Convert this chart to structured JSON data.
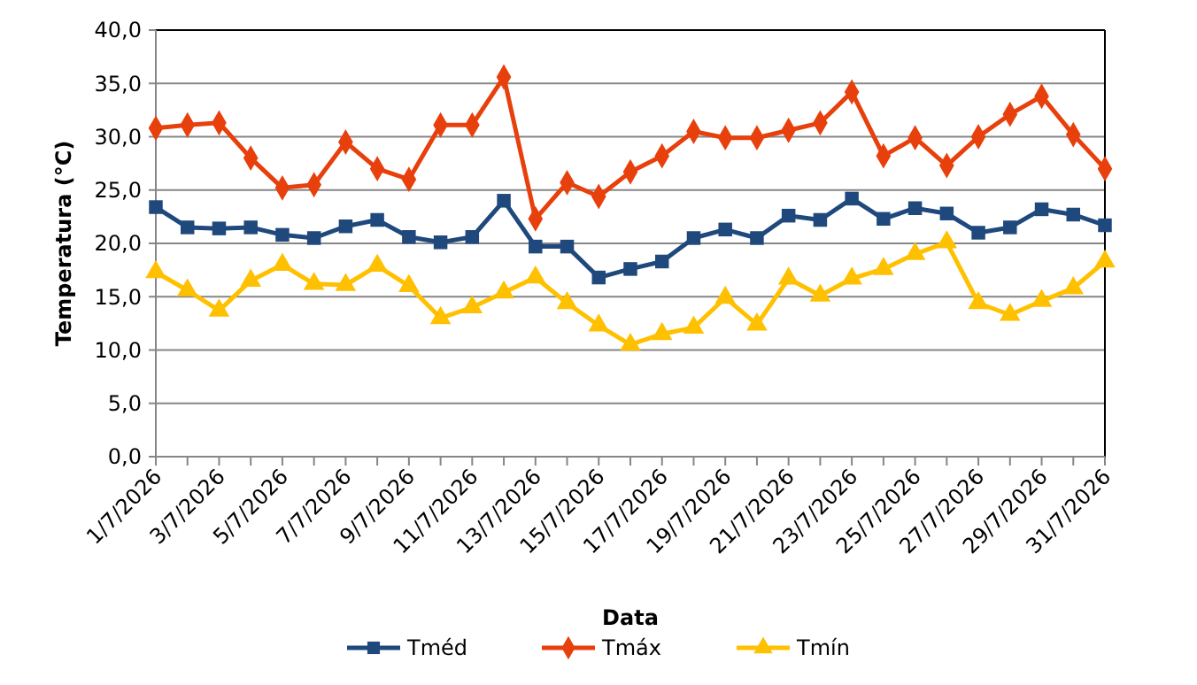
{
  "chart_data": {
    "type": "line",
    "xlabel": "Data",
    "ylabel": "Temperatura (°C)",
    "categories": [
      "1/7/2026",
      null,
      "3/7/2026",
      null,
      "5/7/2026",
      null,
      "7/7/2026",
      null,
      "9/7/2026",
      null,
      "11/7/2026",
      null,
      "13/7/2026",
      null,
      "15/7/2026",
      null,
      "17/7/2026",
      null,
      "19/7/2026",
      null,
      "21/7/2026",
      null,
      "23/7/2026",
      null,
      "25/7/2026",
      null,
      "27/7/2026",
      null,
      "29/7/2026",
      null,
      "31/7/2026"
    ],
    "series": [
      {
        "name": "Tméd",
        "color": "#1f497d",
        "marker": "square",
        "values": [
          23.4,
          21.5,
          21.4,
          21.5,
          20.8,
          20.5,
          21.6,
          22.2,
          20.6,
          20.1,
          20.6,
          24.0,
          19.7,
          19.7,
          16.8,
          17.6,
          18.3,
          20.5,
          21.3,
          20.5,
          22.6,
          22.2,
          24.2,
          22.3,
          23.3,
          22.8,
          21.0,
          21.5,
          23.2,
          22.7,
          21.7
        ]
      },
      {
        "name": "Tmáx",
        "color": "#e8400c",
        "marker": "diamond",
        "values": [
          30.8,
          31.1,
          31.3,
          28.0,
          25.2,
          25.5,
          29.5,
          27.0,
          26.0,
          31.1,
          31.1,
          35.6,
          22.3,
          25.7,
          24.4,
          26.7,
          28.2,
          30.5,
          29.9,
          29.9,
          30.6,
          31.3,
          34.2,
          28.2,
          29.9,
          27.3,
          30.0,
          32.1,
          33.8,
          30.2,
          27.0
        ]
      },
      {
        "name": "Tmín",
        "color": "#ffc000",
        "marker": "triangle",
        "values": [
          17.3,
          15.6,
          13.7,
          16.5,
          18.0,
          16.2,
          16.1,
          17.9,
          16.0,
          13.0,
          14.0,
          15.4,
          16.8,
          14.4,
          12.3,
          10.5,
          11.5,
          12.1,
          14.9,
          12.4,
          16.7,
          15.1,
          16.7,
          17.6,
          19.0,
          20.1,
          14.4,
          13.3,
          14.6,
          15.8,
          18.3
        ]
      }
    ],
    "ylim": [
      0,
      40
    ],
    "yticks": [
      {
        "value": 0,
        "label": "0,0"
      },
      {
        "value": 5,
        "label": "5,0"
      },
      {
        "value": 10,
        "label": "10,0"
      },
      {
        "value": 15,
        "label": "15,0"
      },
      {
        "value": 20,
        "label": "20,0"
      },
      {
        "value": 25,
        "label": "25,0"
      },
      {
        "value": 30,
        "label": "30,0"
      },
      {
        "value": 35,
        "label": "35,0"
      },
      {
        "value": 40,
        "label": "40,0"
      }
    ],
    "grid": "y",
    "legend": "bottom",
    "line_style": "solid"
  }
}
